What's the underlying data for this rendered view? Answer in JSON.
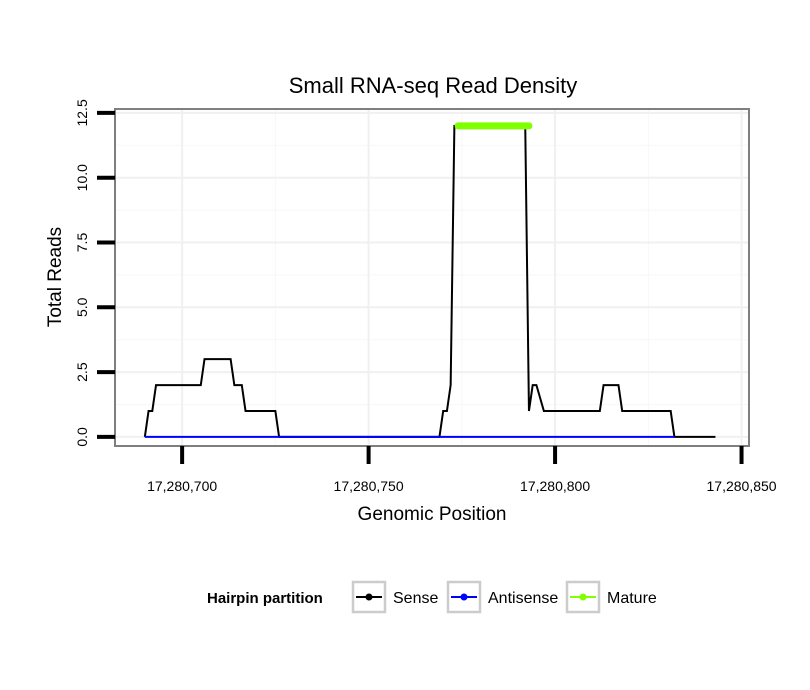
{
  "chart_data": {
    "type": "line",
    "title": "Small RNA-seq Read Density",
    "xlabel": "Genomic Position",
    "ylabel": "Total Reads",
    "xlim": [
      17280682,
      17280852
    ],
    "ylim": [
      -0.35,
      12.65
    ],
    "x_ticks": [
      17280700,
      17280750,
      17280800,
      17280850
    ],
    "x_tick_labels": [
      "17,280,700",
      "17,280,750",
      "17,280,800",
      "17,280,850"
    ],
    "y_ticks": [
      0,
      2.5,
      5,
      7.5,
      10,
      12.5
    ],
    "y_tick_labels": [
      "0.0",
      "2.5",
      "5.0",
      "7.5",
      "10.0",
      "12.5"
    ],
    "grid": true,
    "legend": {
      "title": "Hairpin partition",
      "position": "bottom",
      "entries": [
        "Sense",
        "Antisense",
        "Mature"
      ]
    },
    "series": [
      {
        "name": "Sense",
        "color": "#000000",
        "x": [
          17280690,
          17280691,
          17280692,
          17280693,
          17280694,
          17280705,
          17280706,
          17280713,
          17280714,
          17280716,
          17280717,
          17280725,
          17280726,
          17280769,
          17280770,
          17280771,
          17280772,
          17280773,
          17280792,
          17280793,
          17280794,
          17280795,
          17280797,
          17280798,
          17280812,
          17280813,
          17280817,
          17280818,
          17280831,
          17280832,
          17280843
        ],
        "y": [
          0,
          1,
          1,
          2,
          2,
          2,
          3,
          3,
          2,
          2,
          1,
          1,
          0,
          0,
          1,
          1,
          2,
          12,
          12,
          1,
          2,
          2,
          1,
          1,
          1,
          2,
          2,
          1,
          1,
          0,
          0
        ]
      },
      {
        "name": "Antisense",
        "color": "#0000ff",
        "x": [
          17280690,
          17280832
        ],
        "y": [
          0,
          0
        ]
      },
      {
        "name": "Mature",
        "color": "#7fff00",
        "x": [
          17280774,
          17280793
        ],
        "y": [
          12,
          12
        ]
      }
    ]
  }
}
